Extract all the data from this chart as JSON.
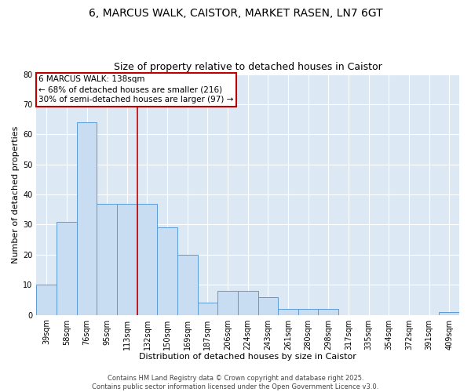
{
  "title_line1": "6, MARCUS WALK, CAISTOR, MARKET RASEN, LN7 6GT",
  "title_line2": "Size of property relative to detached houses in Caistor",
  "xlabel": "Distribution of detached houses by size in Caistor",
  "ylabel": "Number of detached properties",
  "categories": [
    "39sqm",
    "58sqm",
    "76sqm",
    "95sqm",
    "113sqm",
    "132sqm",
    "150sqm",
    "169sqm",
    "187sqm",
    "206sqm",
    "224sqm",
    "243sqm",
    "261sqm",
    "280sqm",
    "298sqm",
    "317sqm",
    "335sqm",
    "354sqm",
    "372sqm",
    "391sqm",
    "409sqm"
  ],
  "values": [
    10,
    31,
    64,
    37,
    37,
    37,
    29,
    20,
    4,
    8,
    8,
    6,
    2,
    2,
    2,
    0,
    0,
    0,
    0,
    0,
    1
  ],
  "bar_color": "#c8ddf2",
  "bar_edgecolor": "#5b9bd5",
  "vline_x": 4.5,
  "vline_color": "#c00000",
  "annotation_title": "6 MARCUS WALK: 138sqm",
  "annotation_line1": "← 68% of detached houses are smaller (216)",
  "annotation_line2": "30% of semi-detached houses are larger (97) →",
  "annotation_box_color": "#ffffff",
  "annotation_box_edgecolor": "#c00000",
  "ylim": [
    0,
    80
  ],
  "yticks": [
    0,
    10,
    20,
    30,
    40,
    50,
    60,
    70,
    80
  ],
  "background_color": "#dce9f5",
  "grid_color": "#ffffff",
  "footer_text": "Contains HM Land Registry data © Crown copyright and database right 2025.\nContains public sector information licensed under the Open Government Licence v3.0.",
  "title_fontsize": 10,
  "subtitle_fontsize": 9,
  "axis_label_fontsize": 8,
  "tick_fontsize": 7,
  "annotation_fontsize": 7.5,
  "fig_width": 6.0,
  "fig_height": 5.0
}
